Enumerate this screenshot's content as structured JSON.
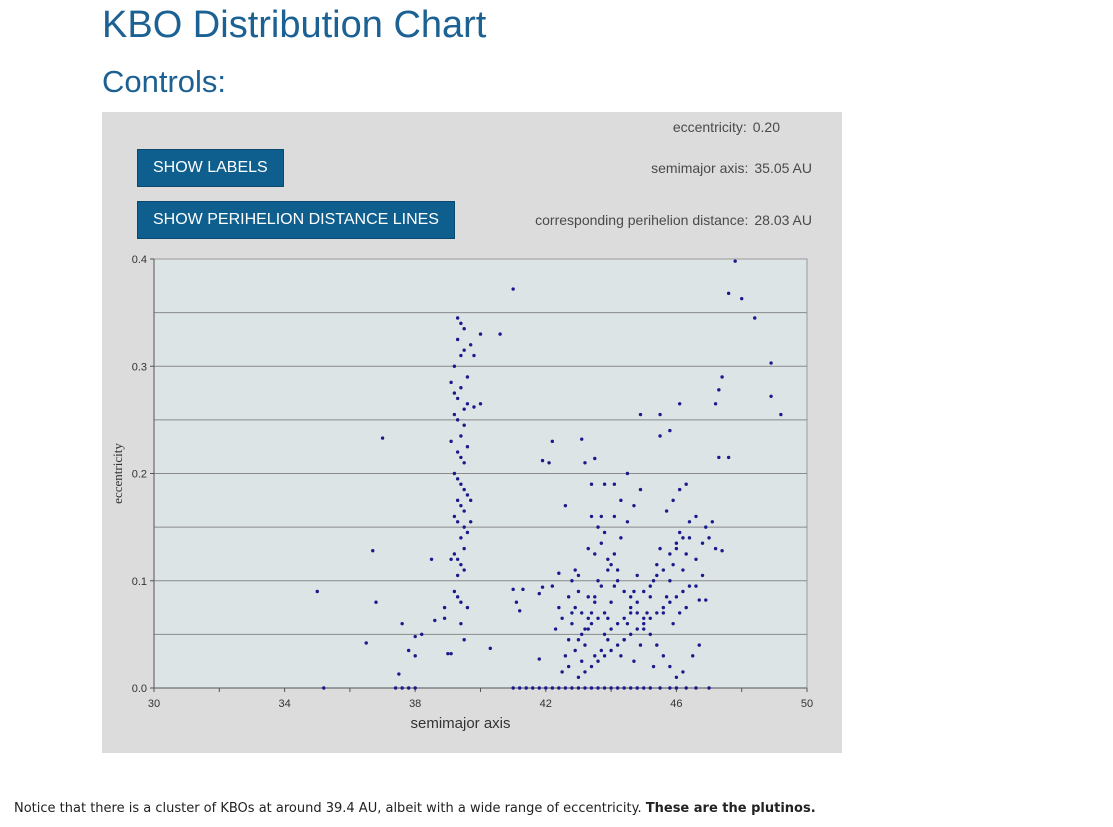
{
  "page": {
    "title": "KBO Distribution Chart",
    "controls_heading": "Controls:"
  },
  "controls": {
    "show_labels_button": "SHOW LABELS",
    "show_lines_button": "SHOW PERIHELION DISTANCE LINES",
    "eccentricity_label": "eccentricity:",
    "eccentricity_value": "0.20",
    "semimajor_label": "semimajor axis:",
    "semimajor_value": "35.05 AU",
    "perihelion_label": "corresponding perihelion distance:",
    "perihelion_value": "28.03 AU"
  },
  "note": {
    "text": "Notice that there is a cluster of KBOs at around 39.4 AU, albeit with a wide range of eccentricity.",
    "emphasis": "These are the plutinos."
  },
  "colors": {
    "heading": "#1c6193",
    "button": "#0f5f8e",
    "plot_background": "#dde4e6",
    "point": "#1a1a8c"
  },
  "chart_data": {
    "type": "scatter",
    "title": "",
    "xlabel": "semimajor axis",
    "ylabel": "eccentricity",
    "xlim": [
      30,
      50
    ],
    "ylim": [
      0,
      0.4
    ],
    "x_ticks": [
      "30",
      "34",
      "38",
      "42",
      "46",
      "50"
    ],
    "y_ticks": [
      "0.0",
      "0.1",
      "0.2",
      "0.3",
      "0.4"
    ],
    "gridlines_y": [
      0.05,
      0.1,
      0.15,
      0.2,
      0.25,
      0.3,
      0.35
    ],
    "points": [
      [
        35.2,
        0.0
      ],
      [
        37.4,
        0.0
      ],
      [
        37.6,
        0.0
      ],
      [
        37.8,
        0.0
      ],
      [
        38.0,
        0.0
      ],
      [
        41.0,
        0.0
      ],
      [
        41.2,
        0.0
      ],
      [
        41.4,
        0.0
      ],
      [
        41.6,
        0.0
      ],
      [
        41.8,
        0.0
      ],
      [
        42.0,
        0.0
      ],
      [
        42.2,
        0.0
      ],
      [
        42.4,
        0.0
      ],
      [
        42.6,
        0.0
      ],
      [
        42.8,
        0.0
      ],
      [
        43.0,
        0.0
      ],
      [
        43.2,
        0.0
      ],
      [
        43.4,
        0.0
      ],
      [
        43.6,
        0.0
      ],
      [
        43.8,
        0.0
      ],
      [
        44.0,
        0.0
      ],
      [
        44.2,
        0.0
      ],
      [
        44.4,
        0.0
      ],
      [
        44.6,
        0.0
      ],
      [
        44.8,
        0.0
      ],
      [
        45.0,
        0.0
      ],
      [
        45.2,
        0.0
      ],
      [
        45.5,
        0.0
      ],
      [
        45.8,
        0.0
      ],
      [
        46.0,
        0.0
      ],
      [
        46.3,
        0.0
      ],
      [
        46.6,
        0.0
      ],
      [
        47.0,
        0.0
      ],
      [
        35.0,
        0.09
      ],
      [
        36.5,
        0.042
      ],
      [
        36.7,
        0.128
      ],
      [
        36.8,
        0.08
      ],
      [
        37.0,
        0.233
      ],
      [
        37.5,
        0.013
      ],
      [
        37.6,
        0.06
      ],
      [
        37.8,
        0.035
      ],
      [
        38.0,
        0.03
      ],
      [
        38.0,
        0.048
      ],
      [
        38.2,
        0.05
      ],
      [
        38.5,
        0.12
      ],
      [
        38.6,
        0.063
      ],
      [
        38.9,
        0.075
      ],
      [
        38.9,
        0.065
      ],
      [
        40.3,
        0.037
      ],
      [
        41.0,
        0.092
      ],
      [
        41.1,
        0.08
      ],
      [
        41.2,
        0.072
      ],
      [
        41.3,
        0.092
      ],
      [
        41.8,
        0.088
      ],
      [
        41.9,
        0.094
      ],
      [
        42.2,
        0.095
      ],
      [
        42.4,
        0.107
      ],
      [
        41.8,
        0.027
      ],
      [
        41.0,
        0.372
      ],
      [
        41.9,
        0.212
      ],
      [
        42.1,
        0.21
      ],
      [
        42.2,
        0.23
      ],
      [
        42.6,
        0.17
      ],
      [
        43.1,
        0.232
      ],
      [
        43.2,
        0.21
      ],
      [
        43.5,
        0.214
      ],
      [
        43.8,
        0.19
      ],
      [
        44.5,
        0.2
      ],
      [
        44.9,
        0.255
      ],
      [
        45.5,
        0.235
      ],
      [
        45.5,
        0.255
      ],
      [
        45.8,
        0.24
      ],
      [
        46.1,
        0.265
      ],
      [
        47.2,
        0.265
      ],
      [
        47.3,
        0.278
      ],
      [
        47.4,
        0.29
      ],
      [
        47.3,
        0.215
      ],
      [
        47.6,
        0.215
      ],
      [
        47.6,
        0.368
      ],
      [
        47.8,
        0.398
      ],
      [
        48.0,
        0.363
      ],
      [
        48.4,
        0.345
      ],
      [
        48.9,
        0.303
      ],
      [
        48.9,
        0.272
      ],
      [
        49.2,
        0.255
      ],
      [
        40.0,
        0.33
      ],
      [
        40.6,
        0.33
      ],
      [
        39.1,
        0.285
      ],
      [
        39.2,
        0.275
      ],
      [
        39.3,
        0.27
      ],
      [
        39.4,
        0.28
      ],
      [
        39.5,
        0.26
      ],
      [
        39.3,
        0.25
      ],
      [
        39.2,
        0.255
      ],
      [
        39.5,
        0.245
      ],
      [
        39.4,
        0.235
      ],
      [
        39.6,
        0.265
      ],
      [
        39.8,
        0.262
      ],
      [
        40.0,
        0.265
      ],
      [
        39.3,
        0.22
      ],
      [
        39.4,
        0.215
      ],
      [
        39.5,
        0.21
      ],
      [
        39.2,
        0.2
      ],
      [
        39.3,
        0.195
      ],
      [
        39.4,
        0.19
      ],
      [
        39.5,
        0.185
      ],
      [
        39.6,
        0.18
      ],
      [
        39.3,
        0.175
      ],
      [
        39.4,
        0.17
      ],
      [
        39.5,
        0.165
      ],
      [
        39.2,
        0.16
      ],
      [
        39.3,
        0.155
      ],
      [
        39.5,
        0.15
      ],
      [
        39.6,
        0.145
      ],
      [
        39.4,
        0.14
      ],
      [
        39.7,
        0.175
      ],
      [
        39.7,
        0.155
      ],
      [
        39.2,
        0.125
      ],
      [
        39.3,
        0.12
      ],
      [
        39.4,
        0.115
      ],
      [
        39.5,
        0.11
      ],
      [
        39.3,
        0.105
      ],
      [
        39.1,
        0.12
      ],
      [
        39.5,
        0.13
      ],
      [
        39.2,
        0.09
      ],
      [
        39.3,
        0.085
      ],
      [
        39.4,
        0.08
      ],
      [
        39.6,
        0.075
      ],
      [
        39.4,
        0.06
      ],
      [
        39.5,
        0.045
      ],
      [
        39.0,
        0.032
      ],
      [
        39.1,
        0.032
      ],
      [
        39.3,
        0.345
      ],
      [
        39.4,
        0.34
      ],
      [
        39.5,
        0.335
      ],
      [
        39.3,
        0.325
      ],
      [
        39.5,
        0.315
      ],
      [
        39.4,
        0.31
      ],
      [
        39.2,
        0.3
      ],
      [
        39.7,
        0.32
      ],
      [
        39.8,
        0.31
      ],
      [
        39.6,
        0.29
      ],
      [
        39.1,
        0.23
      ],
      [
        39.6,
        0.225
      ],
      [
        42.5,
        0.015
      ],
      [
        42.6,
        0.03
      ],
      [
        42.7,
        0.045
      ],
      [
        42.8,
        0.06
      ],
      [
        42.9,
        0.075
      ],
      [
        43.0,
        0.09
      ],
      [
        43.1,
        0.025
      ],
      [
        43.2,
        0.04
      ],
      [
        43.3,
        0.055
      ],
      [
        43.4,
        0.07
      ],
      [
        43.5,
        0.085
      ],
      [
        43.6,
        0.1
      ],
      [
        43.7,
        0.035
      ],
      [
        43.8,
        0.05
      ],
      [
        43.9,
        0.065
      ],
      [
        44.0,
        0.08
      ],
      [
        44.1,
        0.095
      ],
      [
        44.2,
        0.11
      ],
      [
        44.3,
        0.03
      ],
      [
        44.4,
        0.045
      ],
      [
        44.5,
        0.06
      ],
      [
        44.6,
        0.075
      ],
      [
        44.7,
        0.09
      ],
      [
        44.8,
        0.105
      ],
      [
        44.9,
        0.04
      ],
      [
        45.0,
        0.055
      ],
      [
        45.1,
        0.07
      ],
      [
        45.2,
        0.085
      ],
      [
        45.3,
        0.1
      ],
      [
        45.4,
        0.115
      ],
      [
        45.5,
        0.13
      ],
      [
        45.6,
        0.07
      ],
      [
        45.7,
        0.085
      ],
      [
        45.8,
        0.1
      ],
      [
        45.9,
        0.115
      ],
      [
        46.0,
        0.13
      ],
      [
        46.1,
        0.145
      ],
      [
        46.2,
        0.11
      ],
      [
        46.3,
        0.125
      ],
      [
        46.4,
        0.14
      ],
      [
        46.6,
        0.12
      ],
      [
        46.8,
        0.135
      ],
      [
        46.9,
        0.15
      ],
      [
        47.0,
        0.14
      ],
      [
        47.1,
        0.155
      ],
      [
        47.2,
        0.13
      ],
      [
        47.4,
        0.128
      ],
      [
        46.7,
        0.082
      ],
      [
        46.9,
        0.082
      ],
      [
        42.7,
        0.02
      ],
      [
        42.9,
        0.035
      ],
      [
        43.1,
        0.05
      ],
      [
        43.3,
        0.065
      ],
      [
        43.5,
        0.08
      ],
      [
        43.7,
        0.095
      ],
      [
        43.9,
        0.11
      ],
      [
        44.1,
        0.125
      ],
      [
        44.3,
        0.14
      ],
      [
        44.5,
        0.155
      ],
      [
        44.7,
        0.17
      ],
      [
        44.9,
        0.185
      ],
      [
        43.0,
        0.01
      ],
      [
        43.2,
        0.015
      ],
      [
        43.4,
        0.02
      ],
      [
        43.6,
        0.025
      ],
      [
        43.8,
        0.03
      ],
      [
        44.0,
        0.035
      ],
      [
        44.2,
        0.04
      ],
      [
        44.4,
        0.045
      ],
      [
        44.6,
        0.05
      ],
      [
        44.8,
        0.055
      ],
      [
        45.0,
        0.06
      ],
      [
        45.2,
        0.065
      ],
      [
        45.4,
        0.07
      ],
      [
        45.6,
        0.075
      ],
      [
        45.8,
        0.08
      ],
      [
        46.0,
        0.085
      ],
      [
        46.2,
        0.09
      ],
      [
        46.4,
        0.095
      ],
      [
        43.3,
        0.13
      ],
      [
        43.5,
        0.125
      ],
      [
        43.7,
        0.135
      ],
      [
        43.9,
        0.12
      ],
      [
        44.1,
        0.16
      ],
      [
        43.4,
        0.16
      ],
      [
        43.6,
        0.15
      ],
      [
        43.8,
        0.145
      ],
      [
        44.0,
        0.115
      ],
      [
        44.2,
        0.1
      ],
      [
        44.4,
        0.09
      ],
      [
        44.6,
        0.085
      ],
      [
        44.8,
        0.07
      ],
      [
        45.0,
        0.065
      ],
      [
        45.2,
        0.05
      ],
      [
        45.4,
        0.04
      ],
      [
        45.6,
        0.03
      ],
      [
        45.8,
        0.02
      ],
      [
        46.0,
        0.01
      ],
      [
        46.2,
        0.015
      ],
      [
        42.3,
        0.055
      ],
      [
        42.5,
        0.065
      ],
      [
        42.8,
        0.07
      ],
      [
        43.0,
        0.045
      ],
      [
        43.2,
        0.055
      ],
      [
        43.4,
        0.06
      ],
      [
        43.6,
        0.065
      ],
      [
        43.8,
        0.07
      ],
      [
        44.0,
        0.055
      ],
      [
        44.2,
        0.06
      ],
      [
        44.4,
        0.065
      ],
      [
        44.6,
        0.07
      ],
      [
        44.8,
        0.08
      ],
      [
        45.0,
        0.09
      ],
      [
        45.2,
        0.095
      ],
      [
        45.4,
        0.105
      ],
      [
        45.6,
        0.11
      ],
      [
        45.8,
        0.125
      ],
      [
        46.0,
        0.135
      ],
      [
        46.2,
        0.14
      ],
      [
        46.4,
        0.155
      ],
      [
        46.6,
        0.16
      ],
      [
        46.1,
        0.185
      ],
      [
        46.3,
        0.19
      ],
      [
        45.9,
        0.175
      ],
      [
        45.7,
        0.165
      ],
      [
        44.3,
        0.175
      ],
      [
        44.1,
        0.19
      ],
      [
        43.4,
        0.19
      ],
      [
        43.7,
        0.16
      ],
      [
        42.9,
        0.11
      ],
      [
        43.0,
        0.105
      ],
      [
        42.8,
        0.1
      ],
      [
        42.4,
        0.075
      ],
      [
        42.7,
        0.085
      ],
      [
        43.1,
        0.07
      ],
      [
        43.3,
        0.085
      ],
      [
        43.5,
        0.03
      ],
      [
        43.9,
        0.045
      ],
      [
        44.7,
        0.025
      ],
      [
        45.3,
        0.02
      ],
      [
        46.5,
        0.03
      ],
      [
        46.7,
        0.04
      ],
      [
        45.9,
        0.06
      ],
      [
        46.1,
        0.07
      ],
      [
        46.3,
        0.075
      ],
      [
        46.6,
        0.095
      ],
      [
        46.8,
        0.105
      ]
    ]
  }
}
